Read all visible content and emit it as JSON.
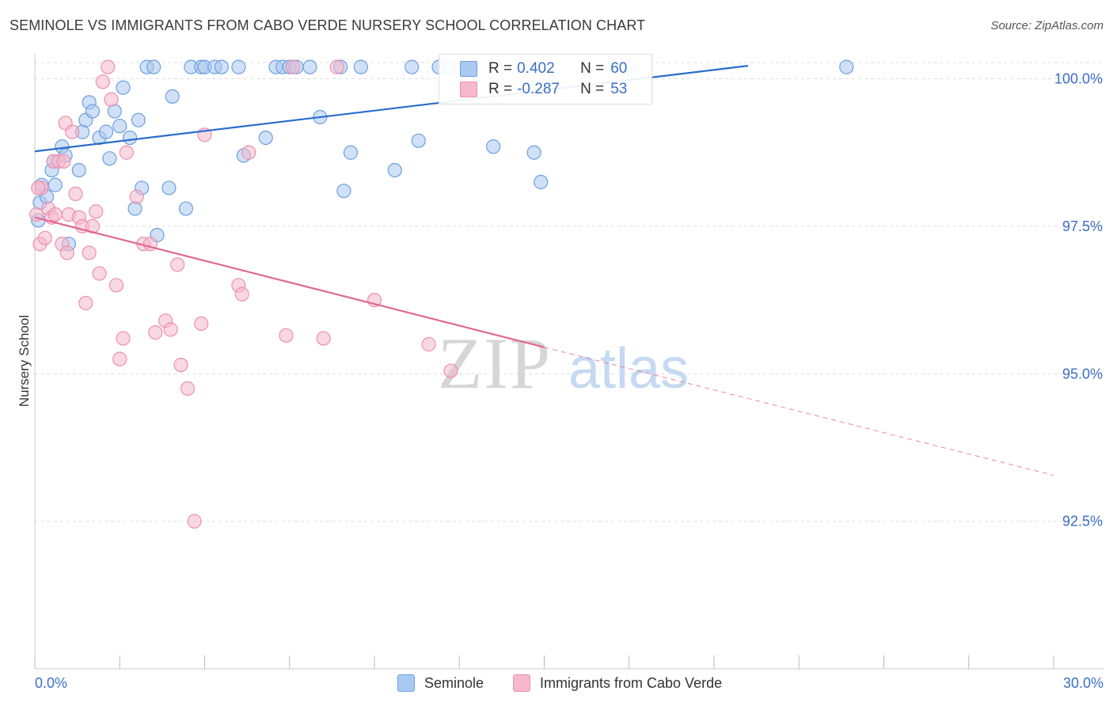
{
  "header": {
    "title": "SEMINOLE VS IMMIGRANTS FROM CABO VERDE NURSERY SCHOOL CORRELATION CHART",
    "source": "Source: ZipAtlas.com"
  },
  "watermark": {
    "zip": "ZIP",
    "atlas": "atlas"
  },
  "colors": {
    "blue_fill": "#aac9f0",
    "blue_stroke": "#6d9fe0",
    "blue_line": "#2a6ccc",
    "pink_fill": "#f6b8cc",
    "pink_stroke": "#ec8faf",
    "pink_line": "#e06890",
    "axis_text": "#3b6fc4",
    "grid": "#dedede"
  },
  "legend": {
    "blue": {
      "r_label": "R =",
      "r_value": "0.402",
      "n_label": "N =",
      "n_value": "60"
    },
    "pink": {
      "r_label": "R =",
      "r_value": "-0.287",
      "n_label": "N =",
      "n_value": "53"
    }
  },
  "bottom_legend": {
    "blue_label": "Seminole",
    "pink_label": "Immigrants from Cabo Verde"
  },
  "chart_data": {
    "type": "scatter",
    "title": "SEMINOLE VS IMMIGRANTS FROM CABO VERDE NURSERY SCHOOL CORRELATION CHART",
    "xlabel": "",
    "ylabel": "Nursery School",
    "xlim": [
      0.0,
      30.0
    ],
    "ylim": [
      90.0,
      100.45
    ],
    "x_tick_labels": [
      "0.0%",
      "30.0%"
    ],
    "y_ticks": [
      100.0,
      97.5,
      95.0,
      92.5
    ],
    "y_tick_labels": [
      "100.0%",
      "97.5%",
      "95.0%",
      "92.5%"
    ],
    "grid": true,
    "series": [
      {
        "name": "Seminole",
        "color": "blue",
        "r": 0.402,
        "n": 60,
        "trend": {
          "x": [
            0.0,
            21.0
          ],
          "y": [
            98.77,
            100.22
          ]
        },
        "points": [
          [
            0.1,
            97.6
          ],
          [
            0.15,
            97.9
          ],
          [
            0.2,
            98.2
          ],
          [
            0.35,
            98.0
          ],
          [
            0.5,
            98.45
          ],
          [
            0.55,
            98.6
          ],
          [
            0.6,
            98.2
          ],
          [
            0.8,
            98.85
          ],
          [
            0.9,
            98.7
          ],
          [
            1.0,
            97.2
          ],
          [
            1.3,
            98.45
          ],
          [
            1.4,
            99.1
          ],
          [
            1.5,
            99.3
          ],
          [
            1.6,
            99.6
          ],
          [
            1.7,
            99.45
          ],
          [
            1.9,
            99.0
          ],
          [
            2.1,
            99.1
          ],
          [
            2.2,
            98.65
          ],
          [
            2.35,
            99.45
          ],
          [
            2.5,
            99.2
          ],
          [
            2.6,
            99.85
          ],
          [
            2.8,
            99.0
          ],
          [
            2.95,
            97.8
          ],
          [
            3.05,
            99.3
          ],
          [
            3.15,
            98.15
          ],
          [
            3.3,
            100.2
          ],
          [
            3.5,
            100.2
          ],
          [
            3.6,
            97.35
          ],
          [
            3.95,
            98.15
          ],
          [
            4.05,
            99.7
          ],
          [
            4.45,
            97.8
          ],
          [
            4.6,
            100.2
          ],
          [
            4.9,
            100.2
          ],
          [
            5.0,
            100.2
          ],
          [
            5.3,
            100.2
          ],
          [
            5.5,
            100.2
          ],
          [
            6.0,
            100.2
          ],
          [
            6.15,
            98.7
          ],
          [
            6.8,
            99.0
          ],
          [
            7.1,
            100.2
          ],
          [
            7.3,
            100.2
          ],
          [
            7.5,
            100.2
          ],
          [
            7.7,
            100.2
          ],
          [
            8.1,
            100.2
          ],
          [
            8.4,
            99.35
          ],
          [
            9.0,
            100.2
          ],
          [
            9.1,
            98.1
          ],
          [
            9.3,
            98.75
          ],
          [
            9.6,
            100.2
          ],
          [
            10.6,
            98.45
          ],
          [
            11.1,
            100.2
          ],
          [
            11.3,
            98.95
          ],
          [
            11.9,
            100.2
          ],
          [
            12.2,
            100.2
          ],
          [
            13.5,
            98.85
          ],
          [
            14.5,
            100.2
          ],
          [
            14.7,
            98.75
          ],
          [
            14.9,
            98.25
          ],
          [
            17.5,
            100.2
          ],
          [
            23.9,
            100.2
          ]
        ]
      },
      {
        "name": "Immigrants from Cabo Verde",
        "color": "pink",
        "r": -0.287,
        "n": 53,
        "trend": {
          "x": [
            0.0,
            15.0
          ],
          "y": [
            97.65,
            95.45
          ]
        },
        "trend_extension": {
          "x": [
            15.0,
            30.0
          ],
          "y": [
            95.45,
            93.28
          ]
        },
        "points": [
          [
            0.05,
            97.7
          ],
          [
            0.15,
            97.2
          ],
          [
            0.2,
            98.15
          ],
          [
            0.3,
            97.3
          ],
          [
            0.4,
            97.8
          ],
          [
            0.5,
            97.65
          ],
          [
            0.55,
            98.6
          ],
          [
            0.6,
            97.7
          ],
          [
            0.7,
            98.6
          ],
          [
            0.8,
            97.2
          ],
          [
            0.85,
            98.6
          ],
          [
            0.9,
            99.25
          ],
          [
            0.95,
            97.05
          ],
          [
            1.0,
            97.7
          ],
          [
            1.1,
            99.1
          ],
          [
            1.2,
            98.05
          ],
          [
            1.3,
            97.65
          ],
          [
            1.4,
            97.5
          ],
          [
            1.5,
            96.2
          ],
          [
            1.6,
            97.05
          ],
          [
            1.7,
            97.5
          ],
          [
            1.8,
            97.75
          ],
          [
            1.9,
            96.7
          ],
          [
            2.0,
            99.95
          ],
          [
            2.15,
            100.2
          ],
          [
            2.25,
            99.65
          ],
          [
            2.4,
            96.5
          ],
          [
            2.5,
            95.25
          ],
          [
            2.6,
            95.6
          ],
          [
            2.7,
            98.75
          ],
          [
            3.0,
            98.0
          ],
          [
            3.2,
            97.2
          ],
          [
            3.4,
            97.2
          ],
          [
            3.55,
            95.7
          ],
          [
            3.85,
            95.9
          ],
          [
            4.0,
            95.75
          ],
          [
            4.2,
            96.85
          ],
          [
            4.3,
            95.15
          ],
          [
            4.5,
            94.75
          ],
          [
            4.7,
            92.5
          ],
          [
            4.9,
            95.85
          ],
          [
            5.0,
            99.05
          ],
          [
            6.0,
            96.5
          ],
          [
            6.1,
            96.35
          ],
          [
            6.3,
            98.75
          ],
          [
            7.4,
            95.65
          ],
          [
            7.6,
            100.2
          ],
          [
            8.5,
            95.6
          ],
          [
            8.9,
            100.2
          ],
          [
            10.0,
            96.25
          ],
          [
            11.6,
            95.5
          ],
          [
            12.25,
            95.05
          ],
          [
            0.1,
            98.15
          ]
        ]
      }
    ]
  }
}
